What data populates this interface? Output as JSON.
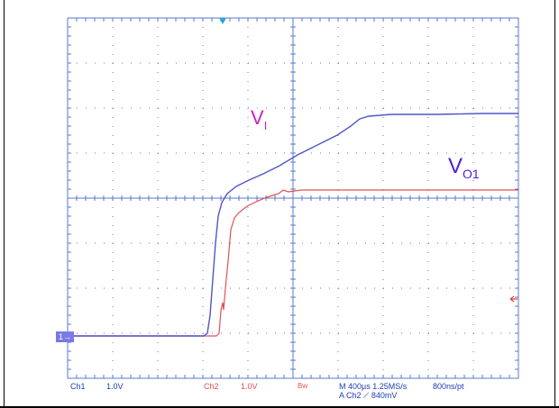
{
  "labels": {
    "vi_main": "V",
    "vi_sub": "I",
    "vo_main": "V",
    "vo_sub": "O1"
  },
  "markers": {
    "ch1_marker": "1"
  },
  "readout": {
    "ch1": "Ch1",
    "ch1_scale": "1.0V",
    "ch2": "Ch2",
    "ch2_scale": "1.0V",
    "bw": "Bw",
    "line1": "M 400µs  1.25MS/s",
    "line2": "A  Ch2  ⟋  840mV",
    "sample": "800ns/pt"
  },
  "colors": {
    "ch1": "#5055c8",
    "ch2": "#e05050",
    "vi_label": "#d020c0",
    "vo_label": "#5020d0",
    "grid": "#5a78c8",
    "readout": "#1c3db0"
  }
}
